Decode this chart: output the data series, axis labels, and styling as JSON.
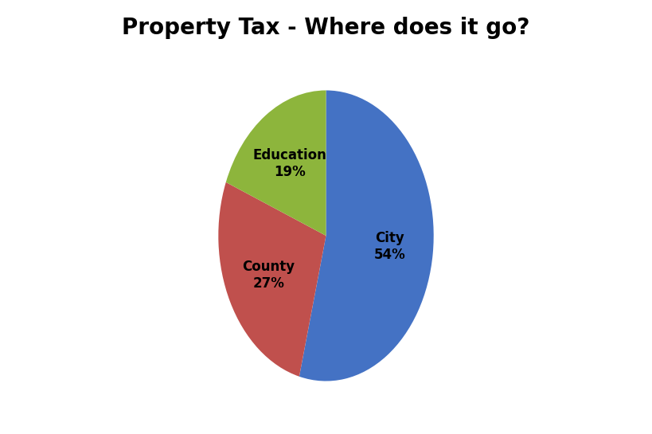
{
  "title": "Property Tax - Where does it go?",
  "labels": [
    "City",
    "County",
    "Education"
  ],
  "values": [
    54,
    27,
    19
  ],
  "colors": [
    "#4472C4",
    "#C0504D",
    "#8DB53C"
  ],
  "label_lines": [
    [
      "City",
      "54%"
    ],
    [
      "County",
      "27%"
    ],
    [
      "Education",
      "19%"
    ]
  ],
  "startangle": 90,
  "title_fontsize": 20,
  "label_fontsize": 12,
  "background_color": "#ffffff"
}
